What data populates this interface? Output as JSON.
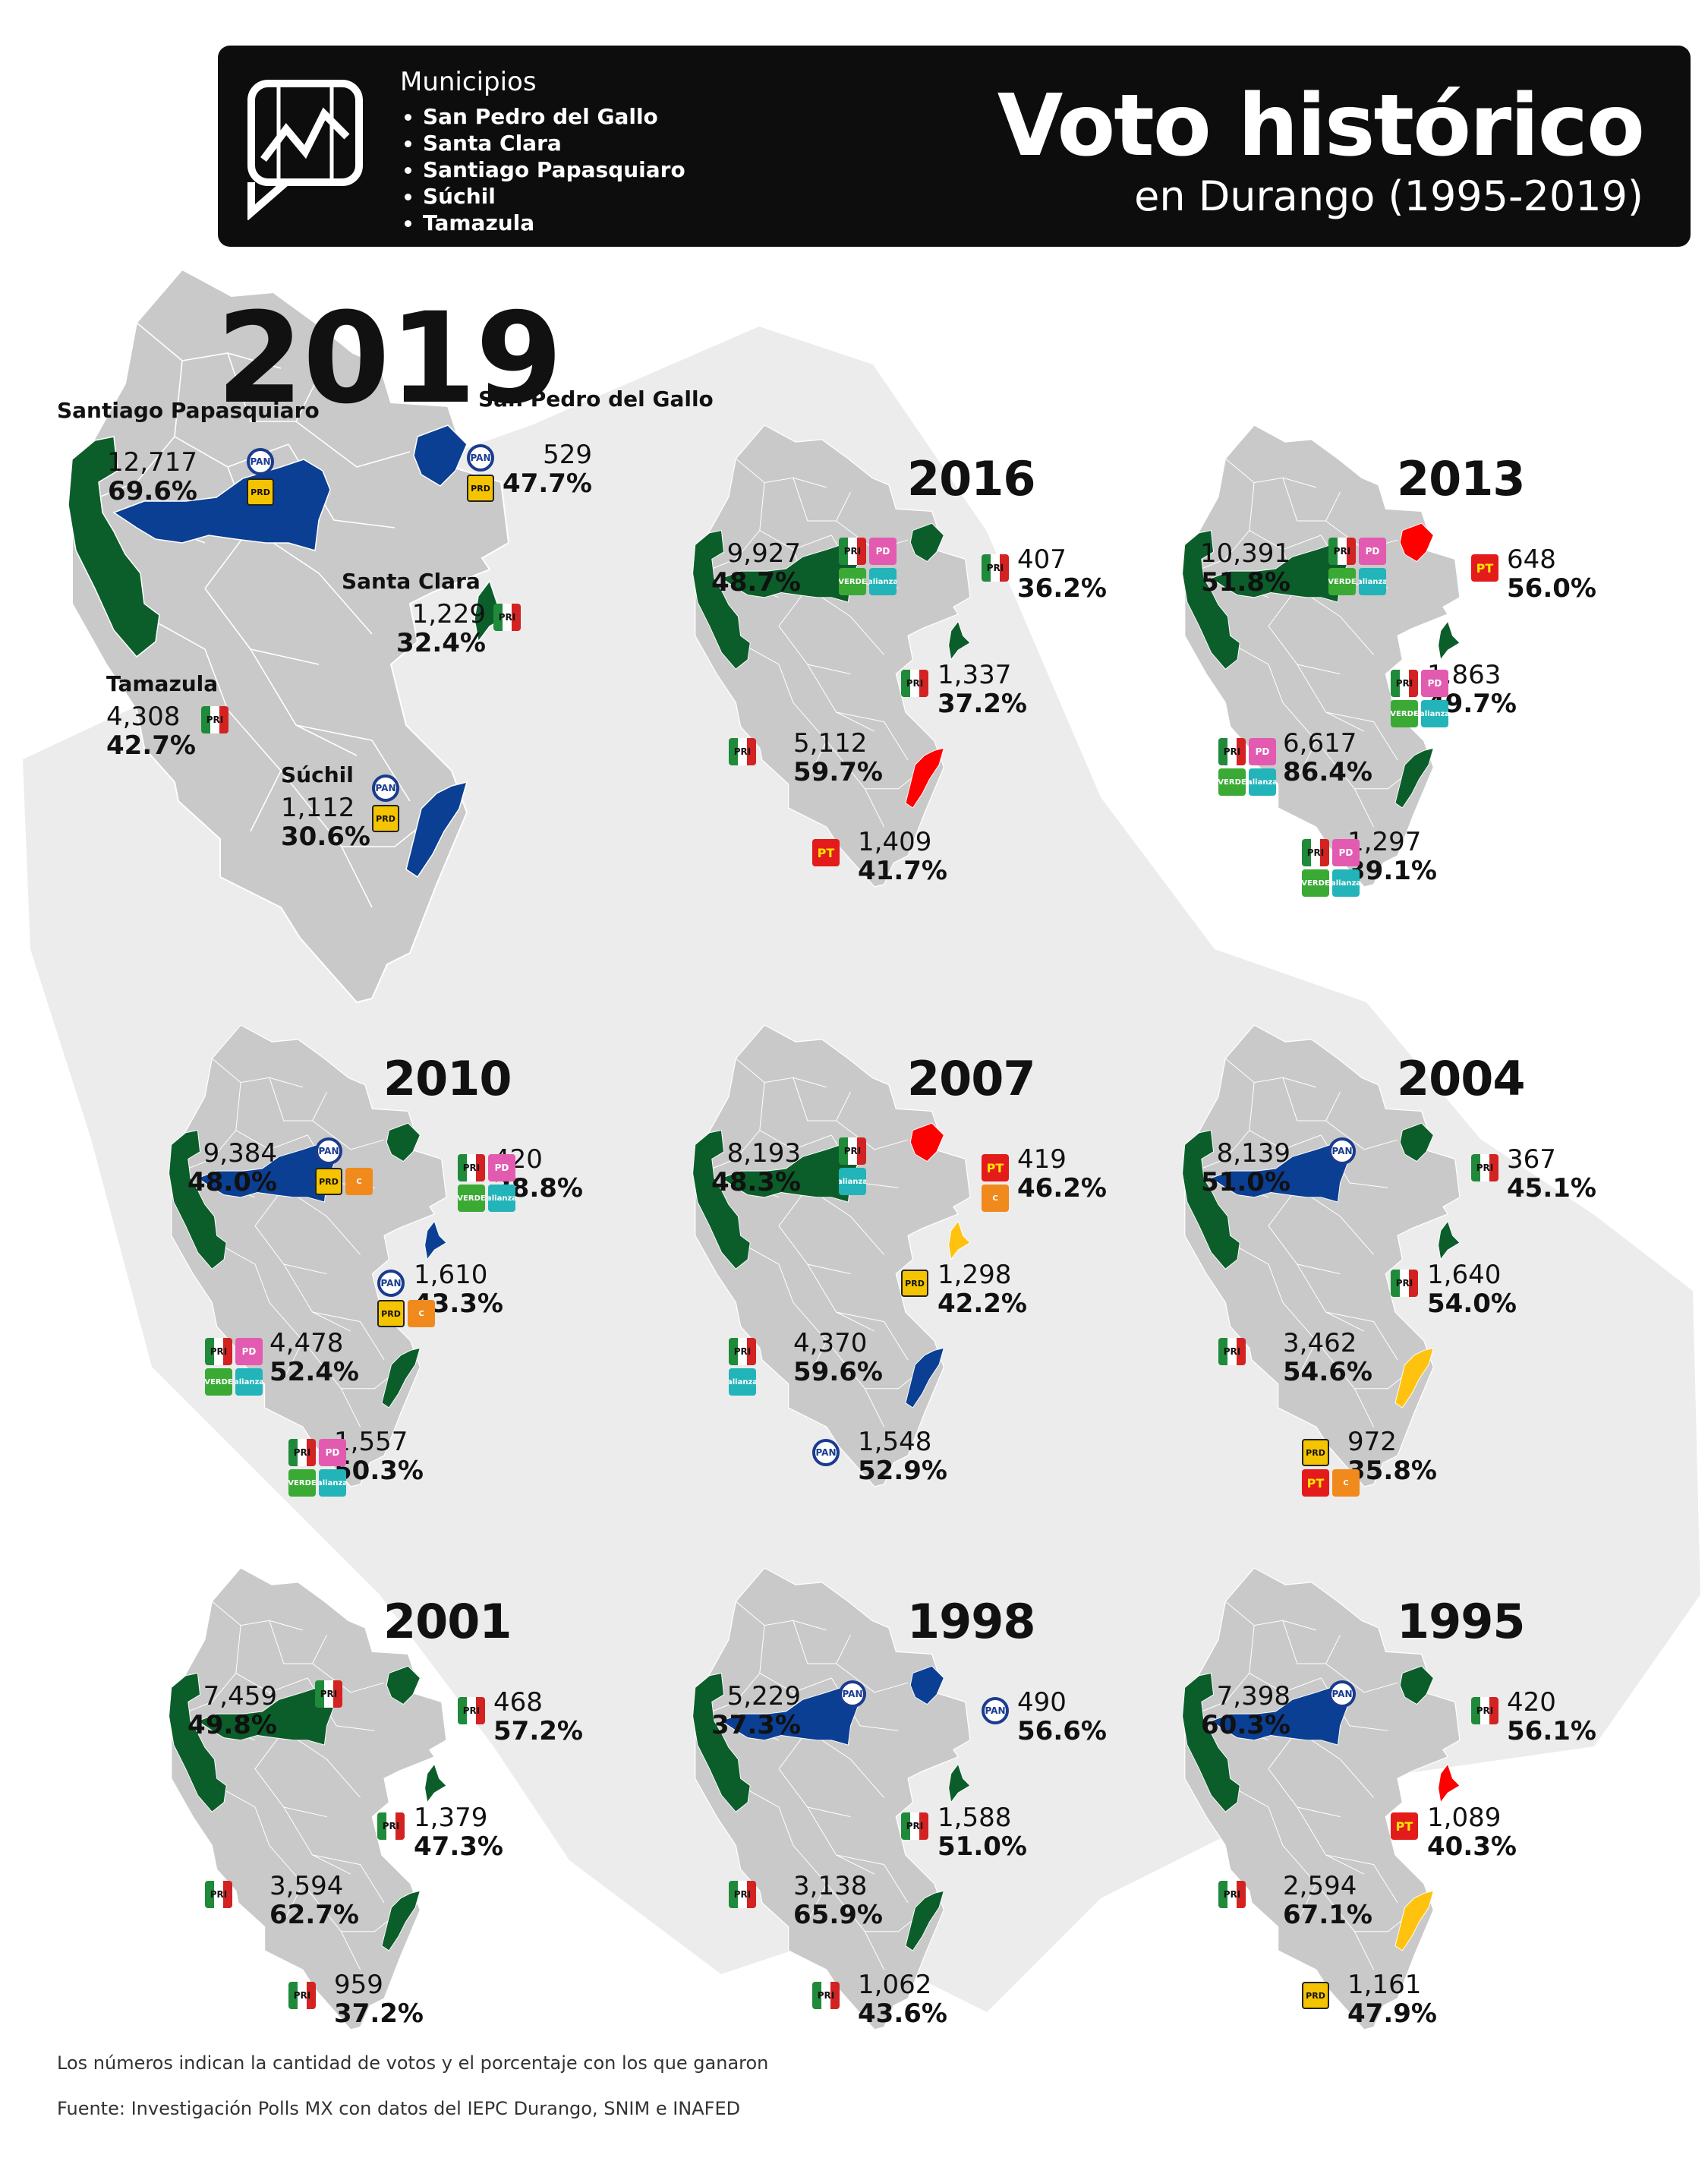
{
  "header": {
    "municipios_title": "Municipios",
    "municipios": [
      "San Pedro del Gallo",
      "Santa Clara",
      "Santiago Papasquiaro",
      "Súchil",
      "Tamazula"
    ],
    "title": "Voto histórico",
    "subtitle": "en Durango (1995-2019)"
  },
  "colors": {
    "background": "#ffffff",
    "state_outline": "#ececec",
    "municipality_gray": "#c9c9c9",
    "PRI_green": "#0b5e2a",
    "PAN_blue": "#0b3f94",
    "PT_red": "#ff0000",
    "PRD_yellow": "#ffc20e"
  },
  "years": [
    {
      "year": "2019",
      "results": [
        {
          "id": "santiago",
          "name": "Santiago Papasquiaro",
          "votes": "12,717",
          "pct": "69.6%",
          "parties": [
            [
              "PAN"
            ],
            [
              "PRD"
            ]
          ],
          "winner": "PAN"
        },
        {
          "id": "sanpedro",
          "name": "San Pedro del Gallo",
          "votes": "529",
          "pct": "47.7%",
          "parties": [
            [
              "PAN"
            ],
            [
              "PRD"
            ]
          ],
          "winner": "PAN"
        },
        {
          "id": "santaclara",
          "name": "Santa Clara",
          "votes": "1,229",
          "pct": "32.4%",
          "parties": [
            [
              "PRI"
            ]
          ],
          "winner": "PRI"
        },
        {
          "id": "tamazula",
          "name": "Tamazula",
          "votes": "4,308",
          "pct": "42.7%",
          "parties": [
            [
              "PRI"
            ]
          ],
          "winner": "PRI"
        },
        {
          "id": "suchil",
          "name": "Súchil",
          "votes": "1,112",
          "pct": "30.6%",
          "parties": [
            [
              "PAN"
            ],
            [
              "PRD"
            ]
          ],
          "winner": "PAN"
        }
      ]
    },
    {
      "year": "2016",
      "results": [
        {
          "id": "santiago",
          "votes": "9,927",
          "pct": "48.7%",
          "parties": [
            [
              "PRI",
              "PD"
            ],
            [
              "PVEM",
              "NA"
            ]
          ],
          "winner": "PRI"
        },
        {
          "id": "sanpedro",
          "votes": "407",
          "pct": "36.2%",
          "parties": [
            [
              "PRI"
            ]
          ],
          "winner": "PRI"
        },
        {
          "id": "santaclara",
          "votes": "1,337",
          "pct": "37.2%",
          "parties": [
            [
              "PRI"
            ]
          ],
          "winner": "PRI"
        },
        {
          "id": "tamazula",
          "votes": "5,112",
          "pct": "59.7%",
          "parties": [
            [
              "PRI"
            ]
          ],
          "winner": "PRI"
        },
        {
          "id": "suchil",
          "votes": "1,409",
          "pct": "41.7%",
          "parties": [
            [
              "PT"
            ]
          ],
          "winner": "PT"
        }
      ]
    },
    {
      "year": "2013",
      "results": [
        {
          "id": "santiago",
          "votes": "10,391",
          "pct": "51.8%",
          "parties": [
            [
              "PRI",
              "PD"
            ],
            [
              "PVEM",
              "NA"
            ]
          ],
          "winner": "PRI"
        },
        {
          "id": "sanpedro",
          "votes": "648",
          "pct": "56.0%",
          "parties": [
            [
              "PT"
            ]
          ],
          "winner": "PT"
        },
        {
          "id": "santaclara",
          "votes": "1,863",
          "pct": "49.7%",
          "parties": [
            [
              "PRI",
              "PD"
            ],
            [
              "PVEM",
              "NA"
            ]
          ],
          "winner": "PRI"
        },
        {
          "id": "tamazula",
          "votes": "6,617",
          "pct": "86.4%",
          "parties": [
            [
              "PRI",
              "PD"
            ],
            [
              "PVEM",
              "NA"
            ]
          ],
          "winner": "PRI"
        },
        {
          "id": "suchil",
          "votes": "1,297",
          "pct": "39.1%",
          "parties": [
            [
              "PRI",
              "PD"
            ],
            [
              "PVEM",
              "NA"
            ]
          ],
          "winner": "PRI"
        }
      ]
    },
    {
      "year": "2010",
      "results": [
        {
          "id": "santiago",
          "votes": "9,384",
          "pct": "48.0%",
          "parties": [
            [
              "PAN"
            ],
            [
              "PRD",
              "CONV"
            ]
          ],
          "winner": "PAN"
        },
        {
          "id": "sanpedro",
          "votes": "420",
          "pct": "38.8%",
          "parties": [
            [
              "PRI",
              "PD"
            ],
            [
              "PVEM",
              "NA"
            ]
          ],
          "winner": "PRI"
        },
        {
          "id": "santaclara",
          "votes": "1,610",
          "pct": "43.3%",
          "parties": [
            [
              "PAN"
            ],
            [
              "PRD",
              "CONV"
            ]
          ],
          "winner": "PAN"
        },
        {
          "id": "tamazula",
          "votes": "4,478",
          "pct": "52.4%",
          "parties": [
            [
              "PRI",
              "PD"
            ],
            [
              "PVEM",
              "NA"
            ]
          ],
          "winner": "PRI"
        },
        {
          "id": "suchil",
          "votes": "1,557",
          "pct": "50.3%",
          "parties": [
            [
              "PRI",
              "PD"
            ],
            [
              "PVEM",
              "NA"
            ]
          ],
          "winner": "PRI"
        }
      ]
    },
    {
      "year": "2007",
      "results": [
        {
          "id": "santiago",
          "votes": "8,193",
          "pct": "48.3%",
          "parties": [
            [
              "PRI"
            ],
            [
              "NA"
            ]
          ],
          "winner": "PRI"
        },
        {
          "id": "sanpedro",
          "votes": "419",
          "pct": "46.2%",
          "parties": [
            [
              "PT"
            ],
            [
              "CONV"
            ]
          ],
          "winner": "PT"
        },
        {
          "id": "santaclara",
          "votes": "1,298",
          "pct": "42.2%",
          "parties": [
            [
              "PRD"
            ]
          ],
          "winner": "PRD"
        },
        {
          "id": "tamazula",
          "votes": "4,370",
          "pct": "59.6%",
          "parties": [
            [
              "PRI"
            ],
            [
              "NA"
            ]
          ],
          "winner": "PRI"
        },
        {
          "id": "suchil",
          "votes": "1,548",
          "pct": "52.9%",
          "parties": [
            [
              "PAN"
            ]
          ],
          "winner": "PAN"
        }
      ]
    },
    {
      "year": "2004",
      "results": [
        {
          "id": "santiago",
          "votes": "8,139",
          "pct": "51.0%",
          "parties": [
            [
              "PAN"
            ]
          ],
          "winner": "PAN"
        },
        {
          "id": "sanpedro",
          "votes": "367",
          "pct": "45.1%",
          "parties": [
            [
              "PRI"
            ]
          ],
          "winner": "PRI"
        },
        {
          "id": "santaclara",
          "votes": "1,640",
          "pct": "54.0%",
          "parties": [
            [
              "PRI"
            ]
          ],
          "winner": "PRI"
        },
        {
          "id": "tamazula",
          "votes": "3,462",
          "pct": "54.6%",
          "parties": [
            [
              "PRI"
            ]
          ],
          "winner": "PRI"
        },
        {
          "id": "suchil",
          "votes": "972",
          "pct": "35.8%",
          "parties": [
            [
              "PRD"
            ],
            [
              "PT",
              "CONV"
            ]
          ],
          "winner": "PRD"
        }
      ]
    },
    {
      "year": "2001",
      "results": [
        {
          "id": "santiago",
          "votes": "7,459",
          "pct": "49.8%",
          "parties": [
            [
              "PRI"
            ]
          ],
          "winner": "PRI"
        },
        {
          "id": "sanpedro",
          "votes": "468",
          "pct": "57.2%",
          "parties": [
            [
              "PRI"
            ]
          ],
          "winner": "PRI"
        },
        {
          "id": "santaclara",
          "votes": "1,379",
          "pct": "47.3%",
          "parties": [
            [
              "PRI"
            ]
          ],
          "winner": "PRI"
        },
        {
          "id": "tamazula",
          "votes": "3,594",
          "pct": "62.7%",
          "parties": [
            [
              "PRI"
            ]
          ],
          "winner": "PRI"
        },
        {
          "id": "suchil",
          "votes": "959",
          "pct": "37.2%",
          "parties": [
            [
              "PRI"
            ]
          ],
          "winner": "PRI"
        }
      ]
    },
    {
      "year": "1998",
      "results": [
        {
          "id": "santiago",
          "votes": "5,229",
          "pct": "37.3%",
          "parties": [
            [
              "PAN"
            ]
          ],
          "winner": "PAN"
        },
        {
          "id": "sanpedro",
          "votes": "490",
          "pct": "56.6%",
          "parties": [
            [
              "PAN"
            ]
          ],
          "winner": "PAN"
        },
        {
          "id": "santaclara",
          "votes": "1,588",
          "pct": "51.0%",
          "parties": [
            [
              "PRI"
            ]
          ],
          "winner": "PRI"
        },
        {
          "id": "tamazula",
          "votes": "3,138",
          "pct": "65.9%",
          "parties": [
            [
              "PRI"
            ]
          ],
          "winner": "PRI"
        },
        {
          "id": "suchil",
          "votes": "1,062",
          "pct": "43.6%",
          "parties": [
            [
              "PRI"
            ]
          ],
          "winner": "PRI"
        }
      ]
    },
    {
      "year": "1995",
      "results": [
        {
          "id": "santiago",
          "votes": "7,398",
          "pct": "60.3%",
          "parties": [
            [
              "PAN"
            ]
          ],
          "winner": "PAN"
        },
        {
          "id": "sanpedro",
          "votes": "420",
          "pct": "56.1%",
          "parties": [
            [
              "PRI"
            ]
          ],
          "winner": "PRI"
        },
        {
          "id": "santaclara",
          "votes": "1,089",
          "pct": "40.3%",
          "parties": [
            [
              "PT"
            ]
          ],
          "winner": "PT"
        },
        {
          "id": "tamazula",
          "votes": "2,594",
          "pct": "67.1%",
          "parties": [
            [
              "PRI"
            ]
          ],
          "winner": "PRI"
        },
        {
          "id": "suchil",
          "votes": "1,161",
          "pct": "47.9%",
          "parties": [
            [
              "PRD"
            ]
          ],
          "winner": "PRD"
        }
      ]
    }
  ],
  "party_badges": {
    "PAN": "PAN",
    "PRI": "PRI",
    "PRD": "PRD",
    "PT": "PT",
    "PVEM": "VERDE",
    "NA": "alianza",
    "PD": "PD",
    "CONV": "C"
  },
  "footer": {
    "note": "Los números indican la cantidad de votos y el porcentaje con los que ganaron",
    "source": "Fuente: Investigación Polls MX con datos del IEPC Durango, SNIM e INAFED"
  }
}
